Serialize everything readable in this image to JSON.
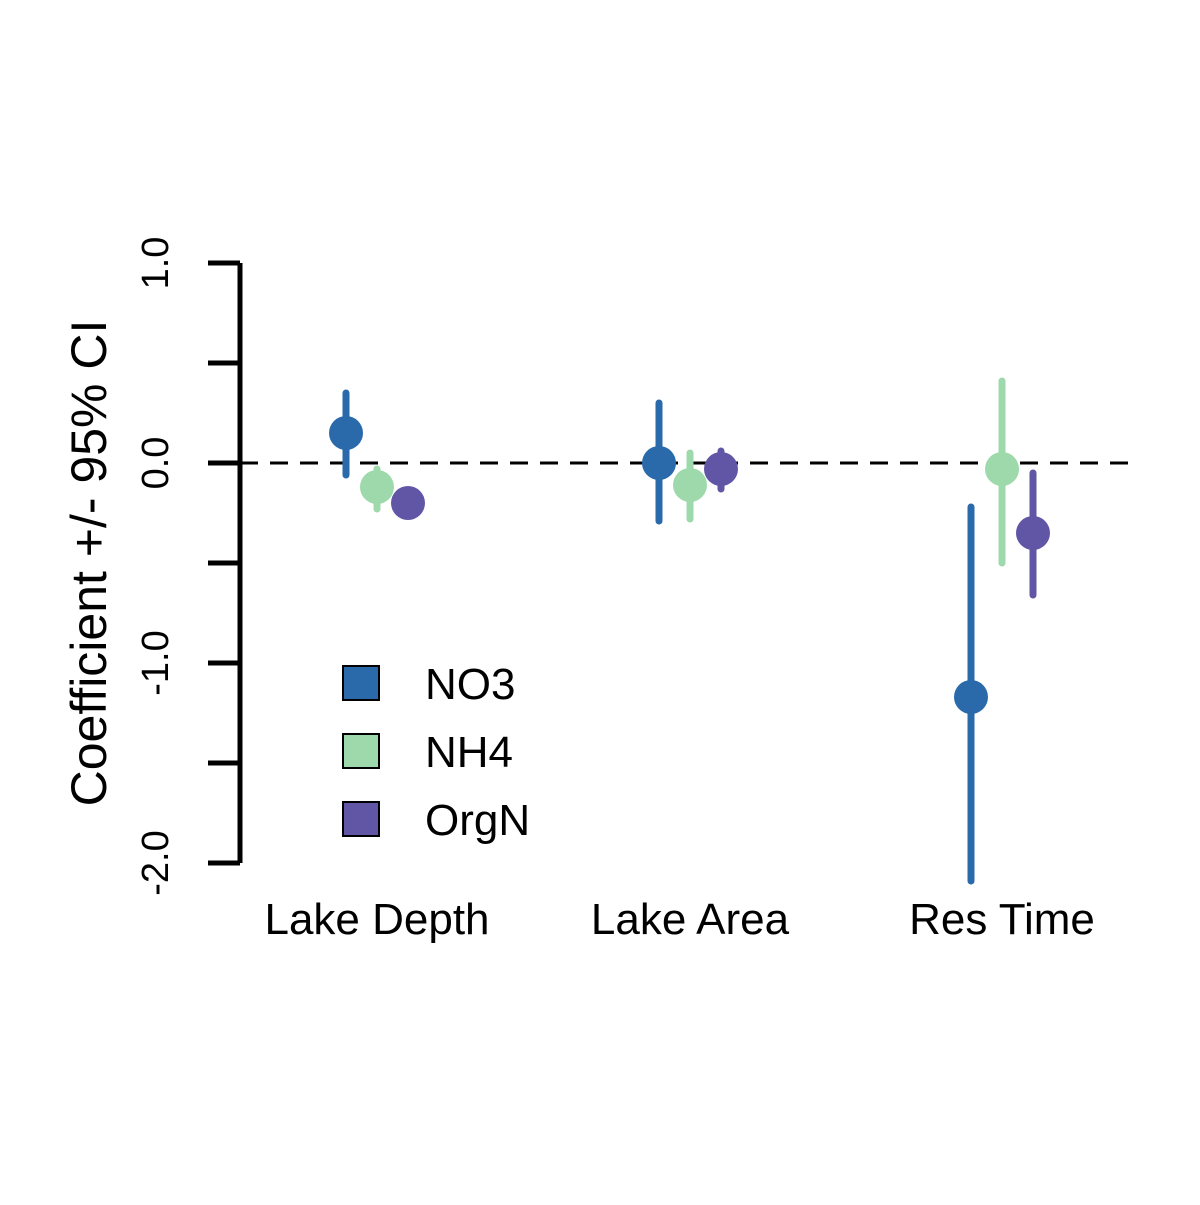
{
  "chart_data": {
    "type": "scatter",
    "subtype": "point-with-error-bars",
    "title": "",
    "xlabel": "",
    "ylabel": "Coefficient +/- 95% CI",
    "ylim": [
      -2.0,
      1.0
    ],
    "yticks": [
      -2.0,
      -1.5,
      -1.0,
      -0.5,
      0.0,
      0.5,
      1.0
    ],
    "ytick_labels": [
      "-2.0",
      "",
      "-1.0",
      "",
      "0.0",
      "",
      "1.0"
    ],
    "reference_line": {
      "y": 0.0,
      "style": "dashed"
    },
    "categories": [
      "Lake Depth",
      "Lake Area",
      "Res Time"
    ],
    "grid": false,
    "legend_position": "bottom-left",
    "series": [
      {
        "name": "NO3",
        "color": "#2a6aab",
        "estimates": [
          0.15,
          0.0,
          -1.17
        ],
        "lower": [
          -0.06,
          -0.29,
          -2.09
        ],
        "upper": [
          0.35,
          0.3,
          -0.22
        ]
      },
      {
        "name": "NH4",
        "color": "#9dd9ab",
        "estimates": [
          -0.12,
          -0.11,
          -0.03
        ],
        "lower": [
          -0.23,
          -0.28,
          -0.5
        ],
        "upper": [
          -0.03,
          0.05,
          0.41
        ]
      },
      {
        "name": "OrgN",
        "color": "#6156a6",
        "estimates": [
          -0.2,
          -0.03,
          -0.35
        ],
        "lower": [
          -0.2,
          -0.13,
          -0.66
        ],
        "upper": [
          -0.2,
          0.06,
          -0.05
        ]
      }
    ]
  }
}
